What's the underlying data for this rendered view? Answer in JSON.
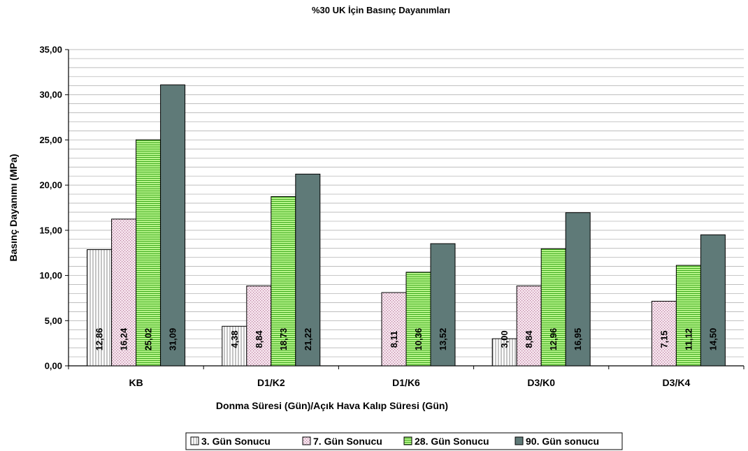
{
  "chart_data": {
    "type": "bar",
    "title": "%30 UK İçin Basınç Dayanımları",
    "xlabel": "Donma Süresi (Gün)/Açık Hava Kalıp Süresi (Gün)",
    "ylabel": "Basınç Dayanımı (MPa)",
    "ylim": [
      0,
      35
    ],
    "ytick_step": 5,
    "ytick_labels": [
      "0,00",
      "5,00",
      "10,00",
      "15,00",
      "20,00",
      "25,00",
      "30,00",
      "35,00"
    ],
    "grid": true,
    "legend_position": "bottom",
    "categories": [
      "KB",
      "D1/K2",
      "D1/K6",
      "D3/K0",
      "D3/K4"
    ],
    "series": [
      {
        "name": "3. Gün Sonucu",
        "color": "#ffffff",
        "pattern": "vertical-lines",
        "values": [
          12.86,
          4.38,
          null,
          3.0,
          null
        ],
        "labels": [
          "12,86",
          "4,38",
          null,
          "3,00",
          null
        ]
      },
      {
        "name": "7. Gün Sonucu",
        "color": "#f4dde9",
        "pattern": "dots",
        "values": [
          16.24,
          8.84,
          8.11,
          8.84,
          7.15
        ],
        "labels": [
          "16,24",
          "8,84",
          "8,11",
          "8,84",
          "7,15"
        ]
      },
      {
        "name": "28. Gün Sonucu",
        "color": "#a8ec72",
        "pattern": "horizontal-lines",
        "values": [
          25.02,
          18.73,
          10.36,
          12.96,
          11.12
        ],
        "labels": [
          "25,02",
          "18,73",
          "10,36",
          "12,96",
          "11,12"
        ]
      },
      {
        "name": "90. Gün sonucu",
        "color": "#5f7a78",
        "pattern": "solid",
        "values": [
          31.09,
          21.22,
          13.52,
          16.95,
          14.5
        ],
        "labels": [
          "31,09",
          "21,22",
          "13,52",
          "16,95",
          "14,50"
        ]
      }
    ]
  }
}
